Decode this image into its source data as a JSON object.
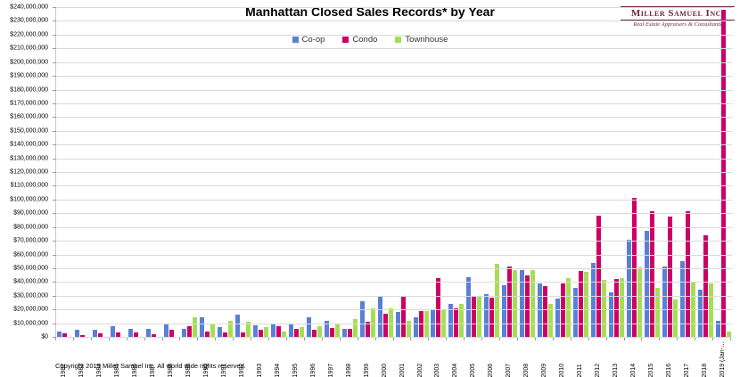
{
  "title": "Manhattan Closed Sales Records* by Year",
  "logo": {
    "name": "Miller Samuel Inc.",
    "tagline": "Real Estate Appraisers & Consultants",
    "color": "#6d2840"
  },
  "footer": {
    "copyright": "Copyright 2019 Miller Samuel Inc.  All world wide rights reserved."
  },
  "y_axis": {
    "min": 0,
    "max": 240000000,
    "step": 10000000,
    "prefix": "$"
  },
  "chart_data": {
    "type": "bar",
    "title": "Manhattan Closed Sales Records* by Year",
    "categories": [
      "1982",
      "1983",
      "1984",
      "1985",
      "1986",
      "1987",
      "1988",
      "1989",
      "1990",
      "1991",
      "1992",
      "1993",
      "1994",
      "1995",
      "1996",
      "1997",
      "1998",
      "1999",
      "2000",
      "2001",
      "2002",
      "2003",
      "2004",
      "2005",
      "2006",
      "2007",
      "2008",
      "2009",
      "2010",
      "2011",
      "2012",
      "2013",
      "2014",
      "2015",
      "2016",
      "2017",
      "2018",
      "2019 (Jan-…"
    ],
    "series": [
      {
        "name": "Co-op",
        "color": "#5b7fd6",
        "values": [
          3700000,
          5200000,
          5400000,
          7900000,
          5800000,
          5800000,
          9700000,
          6000000,
          14000000,
          7000000,
          16000000,
          8500000,
          9200000,
          9000000,
          14500000,
          12000000,
          6000000,
          26000000,
          30000000,
          18000000,
          14000000,
          20000000,
          24000000,
          43500000,
          31000000,
          37500000,
          48500000,
          39000000,
          28000000,
          35500000,
          54000000,
          32500000,
          71000000,
          77500000,
          51500000,
          55000000,
          34500000,
          12000000
        ]
      },
      {
        "name": "Condo",
        "color": "#cc0066",
        "values": [
          2900000,
          1500000,
          2900000,
          3200000,
          3200000,
          2100000,
          5500000,
          7500000,
          4000000,
          3000000,
          3200000,
          5500000,
          8000000,
          6000000,
          5000000,
          6500000,
          6000000,
          11000000,
          17000000,
          30000000,
          19000000,
          43000000,
          20500000,
          30000000,
          28500000,
          51000000,
          45000000,
          37000000,
          39000000,
          48000000,
          88000000,
          42000000,
          101000000,
          91500000,
          87500000,
          91500000,
          74000000,
          238000000
        ]
      },
      {
        "name": "Townhouse",
        "color": "#a5de55",
        "values": [
          0,
          0,
          0,
          0,
          0,
          0,
          0,
          14000000,
          9000000,
          11500000,
          11000000,
          7000000,
          4000000,
          7000000,
          7500000,
          9000000,
          13000000,
          20500000,
          20500000,
          12000000,
          19000000,
          19500000,
          24000000,
          30000000,
          53000000,
          48500000,
          48500000,
          24000000,
          43000000,
          47500000,
          41500000,
          43000000,
          50500000,
          36000000,
          27500000,
          40000000,
          39000000,
          4000000
        ]
      }
    ],
    "ylim": [
      0,
      240000000
    ],
    "grid": true,
    "legend_position": "top",
    "xlabel": "",
    "ylabel": ""
  }
}
